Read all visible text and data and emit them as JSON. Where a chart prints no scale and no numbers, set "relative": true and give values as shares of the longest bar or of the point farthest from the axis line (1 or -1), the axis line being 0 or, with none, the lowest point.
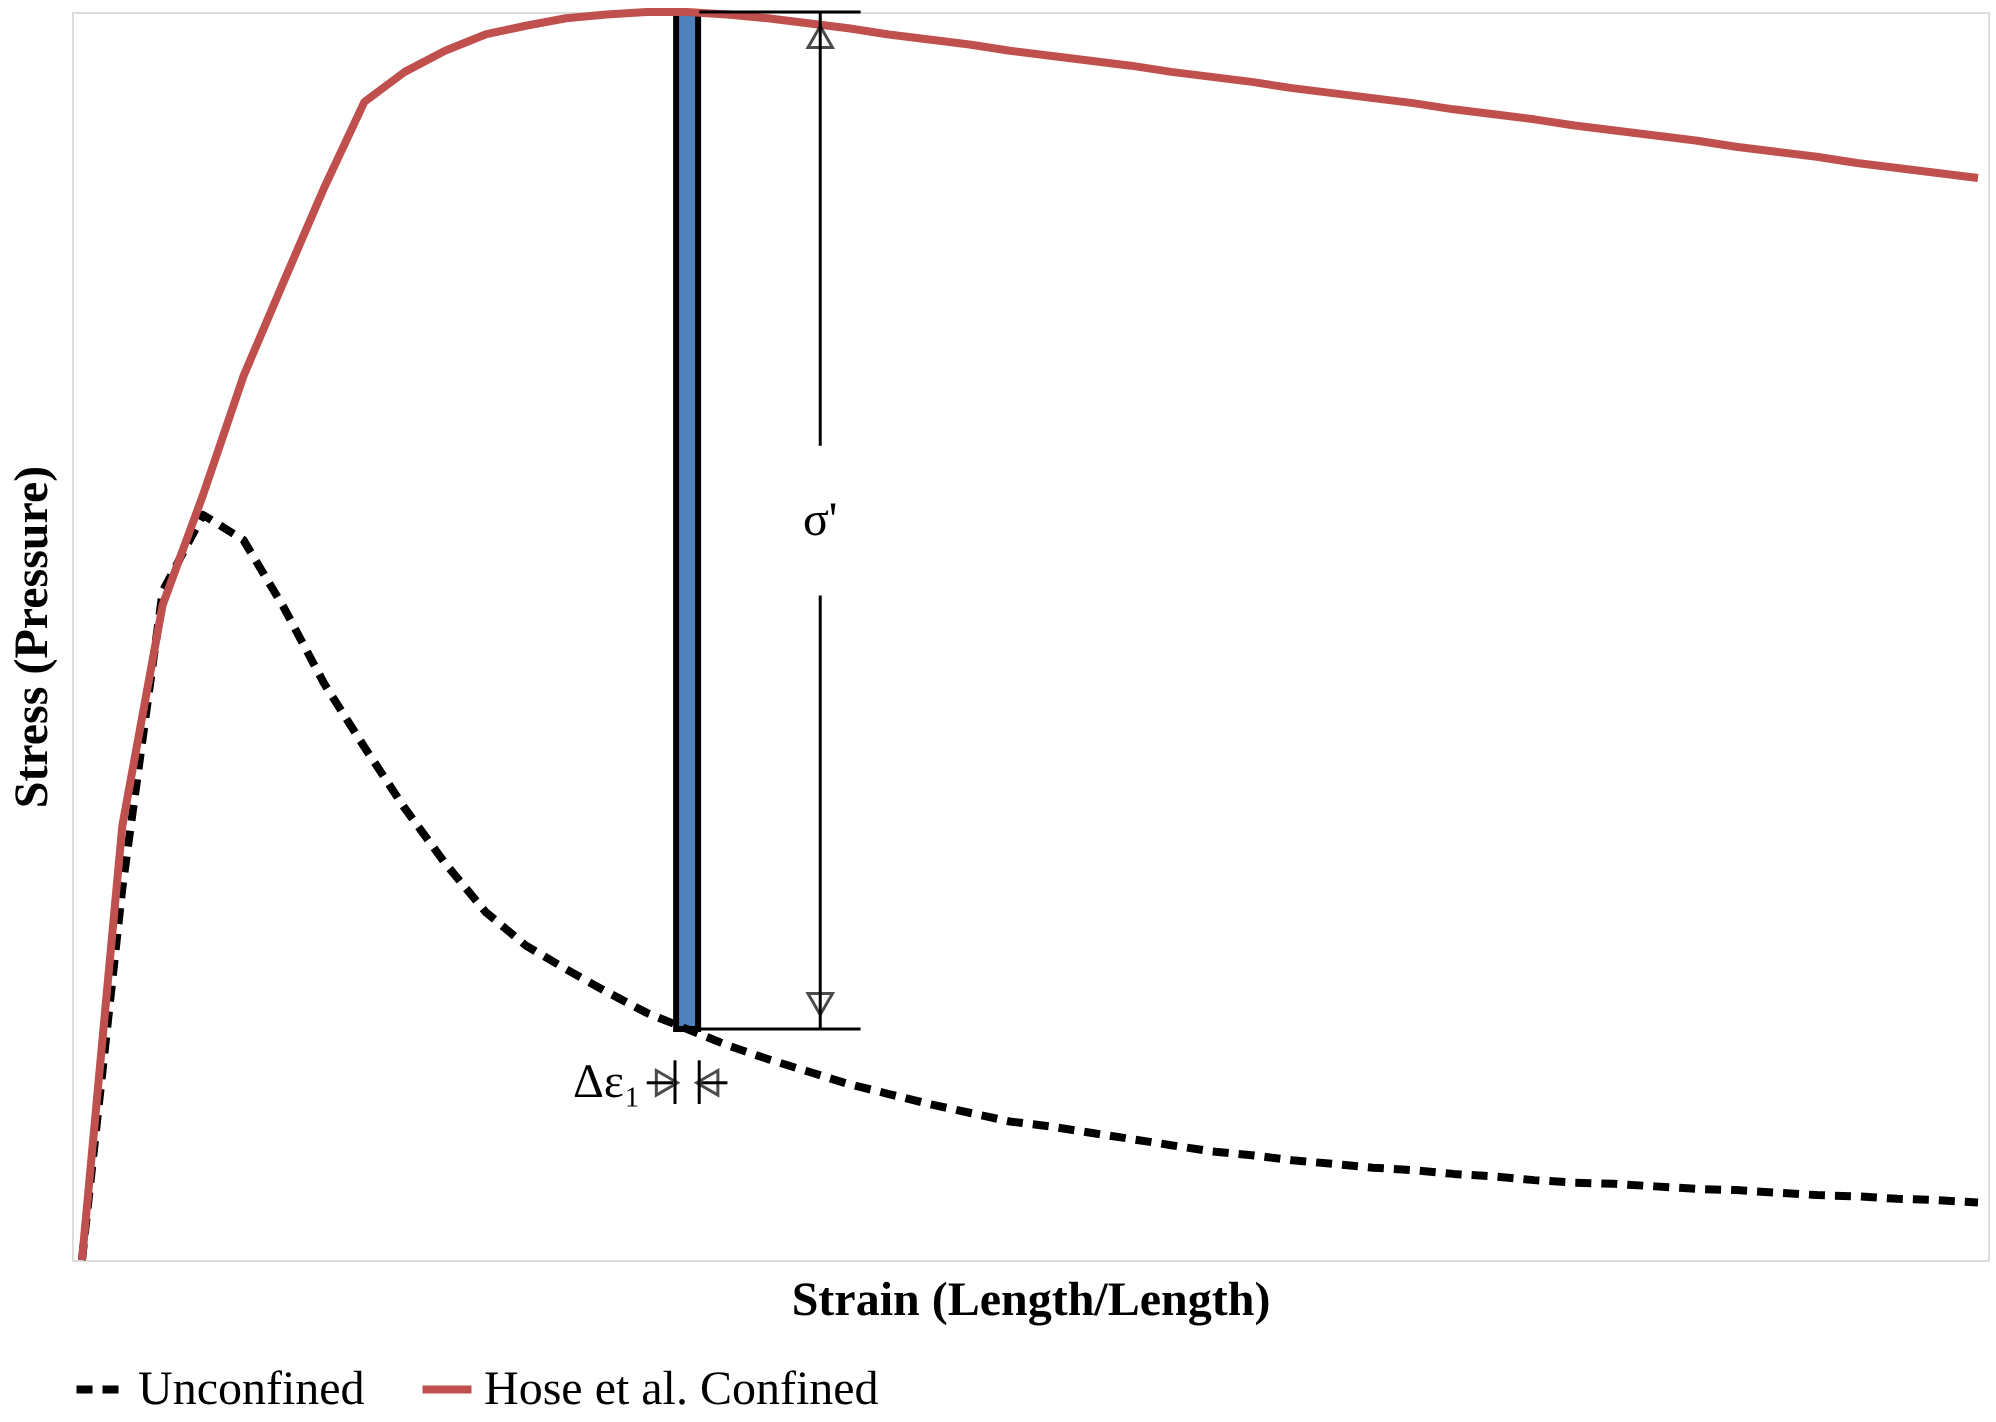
{
  "chart_data": {
    "type": "line",
    "relative": true,
    "xlabel": "Strain (Length/Length)",
    "ylabel": "Stress (Pressure)",
    "categories": [
      null,
      null,
      null,
      null,
      null,
      null,
      null,
      null,
      null,
      null,
      null,
      null,
      null,
      null,
      null,
      null,
      null,
      null,
      null,
      null,
      null,
      null,
      null,
      null,
      null,
      null,
      null,
      null,
      null,
      null,
      null,
      null,
      null,
      null,
      null,
      null,
      null,
      null,
      null,
      null,
      null,
      null,
      null,
      null,
      null,
      null,
      null,
      null
    ],
    "series": [
      {
        "name": "Unconfined",
        "color": "#000000",
        "line_style": "dashed",
        "values": [
          0,
          0.298,
          0.536,
          0.597,
          0.577,
          0.523,
          0.462,
          0.411,
          0.362,
          0.318,
          0.279,
          0.252,
          0.233,
          0.215,
          0.198,
          0.185,
          0.172,
          0.161,
          0.151,
          0.141,
          0.133,
          0.125,
          0.118,
          0.111,
          0.107,
          0.102,
          0.097,
          0.092,
          0.087,
          0.084,
          0.08,
          0.077,
          0.074,
          0.072,
          0.069,
          0.067,
          0.064,
          0.062,
          0.061,
          0.059,
          0.057,
          0.056,
          0.054,
          0.052,
          0.051,
          0.049,
          0.048,
          0.046
        ]
      },
      {
        "name": "Hose et al. Confined",
        "color": "#c0504d",
        "line_style": "solid",
        "values": [
          0,
          0.348,
          0.525,
          0.613,
          0.708,
          0.784,
          0.859,
          0.928,
          0.952,
          0.969,
          0.982,
          0.989,
          0.995,
          0.998,
          1.0,
          1.0,
          0.998,
          0.995,
          0.991,
          0.987,
          0.982,
          0.978,
          0.974,
          0.969,
          0.965,
          0.961,
          0.957,
          0.952,
          0.948,
          0.944,
          0.939,
          0.935,
          0.931,
          0.927,
          0.922,
          0.918,
          0.914,
          0.909,
          0.905,
          0.901,
          0.897,
          0.892,
          0.888,
          0.884,
          0.879,
          0.875,
          0.871,
          0.867
        ]
      }
    ],
    "annotations": [
      "σ'",
      "Δε₁"
    ],
    "legend": "bottom",
    "grid": false,
    "tick_labels": false,
    "marker": "none"
  }
}
